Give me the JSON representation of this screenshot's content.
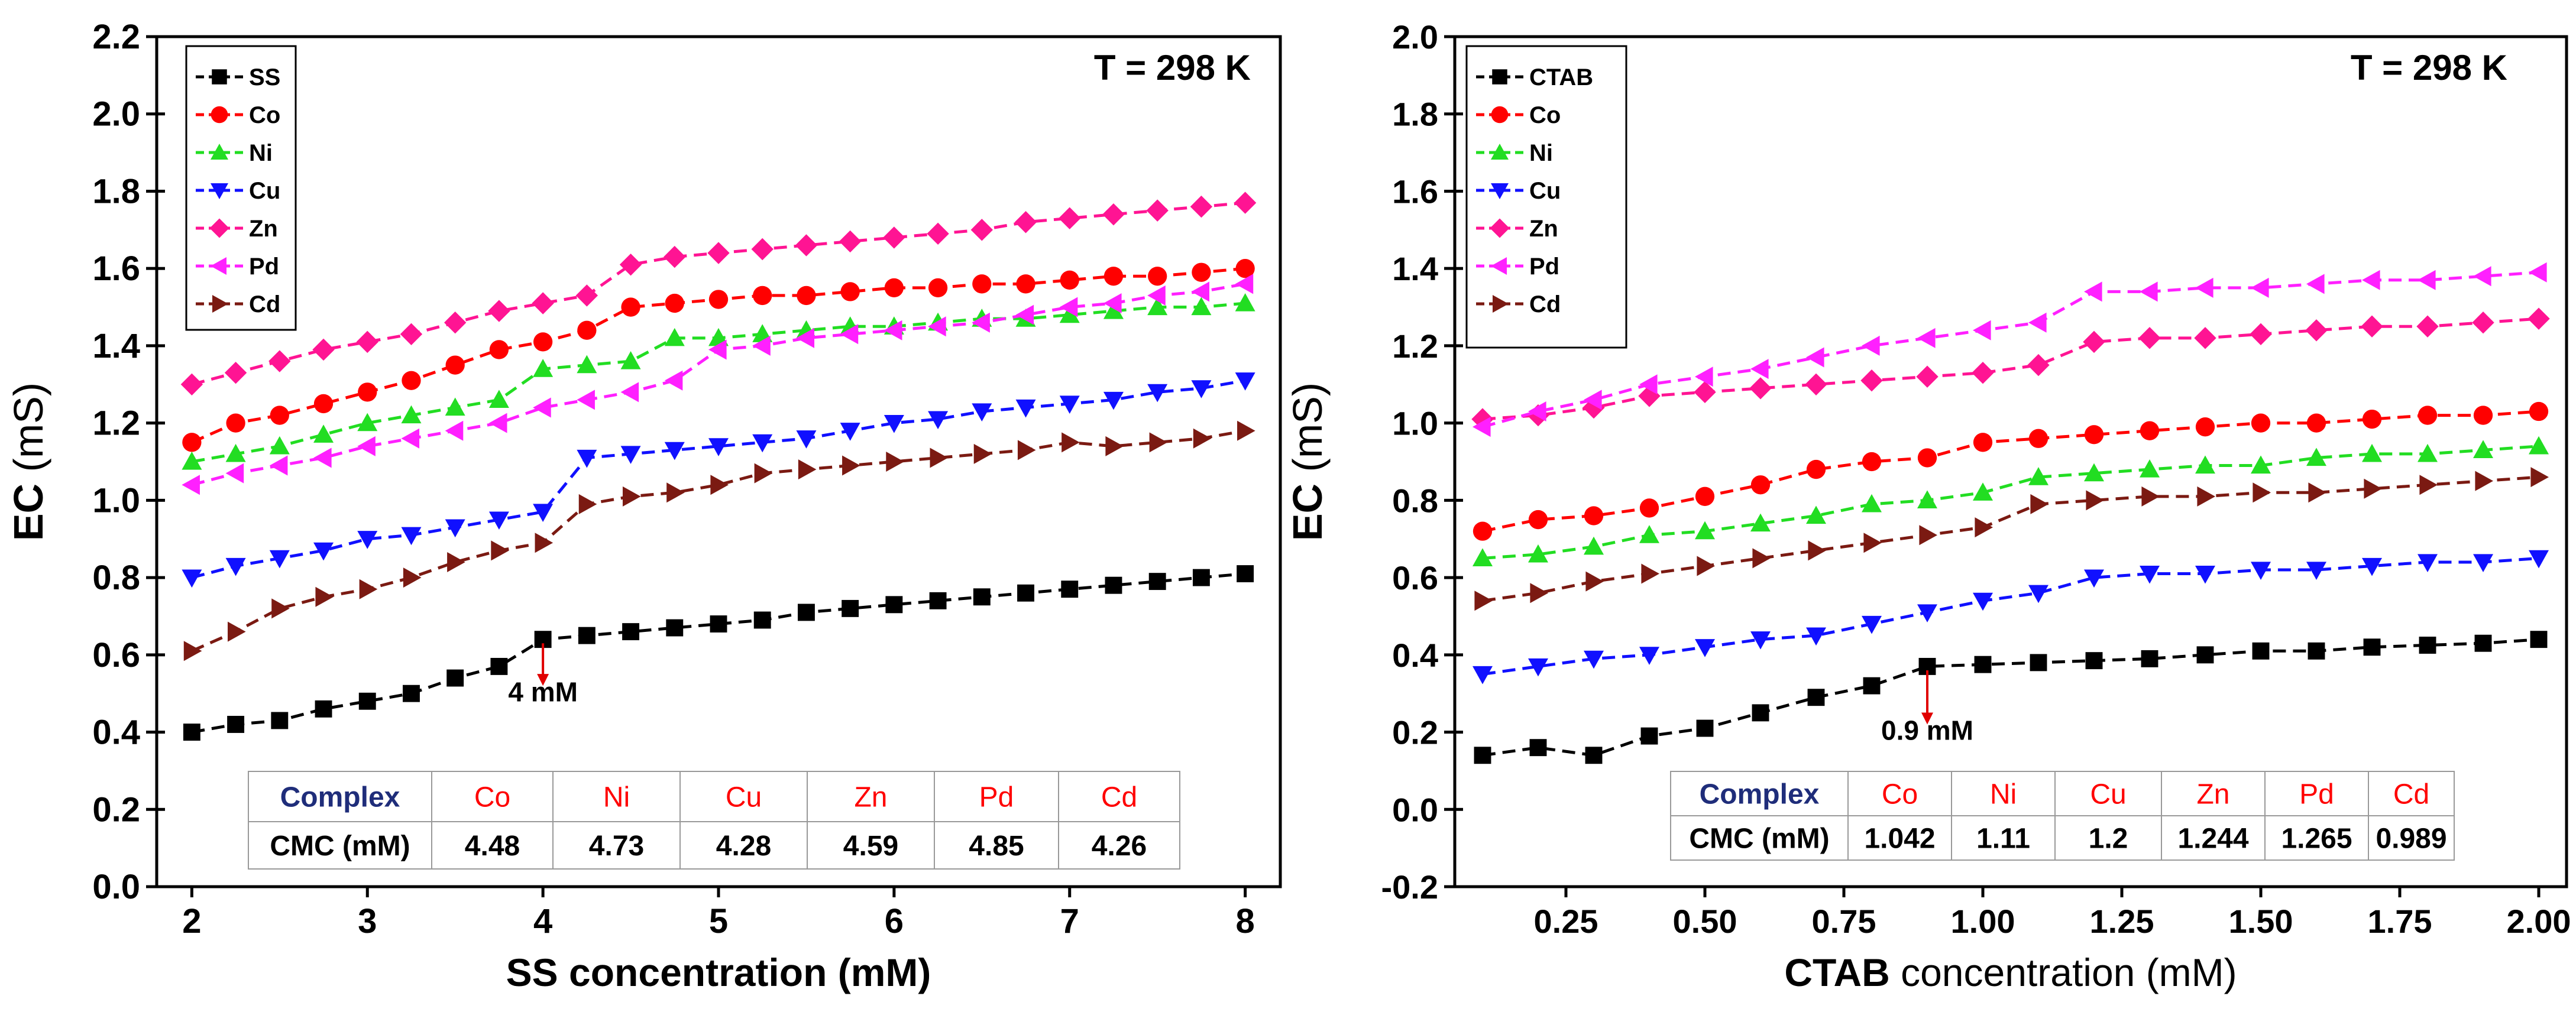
{
  "colors": {
    "black": "#000000",
    "red": "#ff0000",
    "green": "#22dd22",
    "blue": "#1010ff",
    "magenta": "#ff1493",
    "violet": "#ff20ff",
    "brown": "#7b1a12",
    "navy": "#1f2d7a",
    "marker_red": "#e00000"
  },
  "chart_data": [
    {
      "type": "line",
      "temperature_label": "T = 298 K",
      "xlabel": "SS concentration (mM)",
      "xlabel_parts": [
        "SS concentration (mM)",
        ""
      ],
      "ylabel_main": "EC",
      "ylabel_unit": " (mS)",
      "xlim": [
        1.8,
        8.2
      ],
      "ylim": [
        0,
        2.2
      ],
      "xticks": [
        2,
        3,
        4,
        5,
        6,
        7,
        8
      ],
      "xtick_labels": [
        "2",
        "3",
        "4",
        "5",
        "6",
        "7",
        "8"
      ],
      "yticks": [
        0.0,
        0.2,
        0.4,
        0.6,
        0.8,
        1.0,
        1.2,
        1.4,
        1.6,
        1.8,
        2.0,
        2.2
      ],
      "ytick_labels": [
        "0.0",
        "0.2",
        "0.4",
        "0.6",
        "0.8",
        "1.0",
        "1.2",
        "1.4",
        "1.6",
        "1.8",
        "2.0",
        "2.2"
      ],
      "x": [
        2.0,
        2.25,
        2.5,
        2.75,
        3.0,
        3.25,
        3.5,
        3.75,
        4.0,
        4.25,
        4.5,
        4.75,
        5.0,
        5.25,
        5.5,
        5.75,
        6.0,
        6.25,
        6.5,
        6.75,
        7.0,
        7.25,
        7.5,
        7.75,
        8.0
      ],
      "series": [
        {
          "name": "SS",
          "color": "black",
          "marker": "square",
          "values": [
            0.4,
            0.42,
            0.43,
            0.46,
            0.48,
            0.5,
            0.54,
            0.57,
            0.64,
            0.65,
            0.66,
            0.67,
            0.68,
            0.69,
            0.71,
            0.72,
            0.73,
            0.74,
            0.75,
            0.76,
            0.77,
            0.78,
            0.79,
            0.8,
            0.81
          ]
        },
        {
          "name": "Co",
          "color": "red",
          "marker": "circle",
          "values": [
            1.15,
            1.2,
            1.22,
            1.25,
            1.28,
            1.31,
            1.35,
            1.39,
            1.41,
            1.44,
            1.5,
            1.51,
            1.52,
            1.53,
            1.53,
            1.54,
            1.55,
            1.55,
            1.56,
            1.56,
            1.57,
            1.58,
            1.58,
            1.59,
            1.6
          ]
        },
        {
          "name": "Ni",
          "color": "green",
          "marker": "triangle-up",
          "values": [
            1.1,
            1.12,
            1.14,
            1.17,
            1.2,
            1.22,
            1.24,
            1.26,
            1.34,
            1.35,
            1.36,
            1.42,
            1.42,
            1.43,
            1.44,
            1.45,
            1.45,
            1.46,
            1.47,
            1.47,
            1.48,
            1.49,
            1.5,
            1.5,
            1.51
          ]
        },
        {
          "name": "Cu",
          "color": "blue",
          "marker": "triangle-down",
          "values": [
            0.8,
            0.83,
            0.85,
            0.87,
            0.9,
            0.91,
            0.93,
            0.95,
            0.97,
            1.11,
            1.12,
            1.13,
            1.14,
            1.15,
            1.16,
            1.18,
            1.2,
            1.21,
            1.23,
            1.24,
            1.25,
            1.26,
            1.28,
            1.29,
            1.31
          ]
        },
        {
          "name": "Zn",
          "color": "magenta",
          "marker": "diamond",
          "values": [
            1.3,
            1.33,
            1.36,
            1.39,
            1.41,
            1.43,
            1.46,
            1.49,
            1.51,
            1.53,
            1.61,
            1.63,
            1.64,
            1.65,
            1.66,
            1.67,
            1.68,
            1.69,
            1.7,
            1.72,
            1.73,
            1.74,
            1.75,
            1.76,
            1.77
          ]
        },
        {
          "name": "Pd",
          "color": "violet",
          "marker": "triangle-left",
          "values": [
            1.04,
            1.07,
            1.09,
            1.11,
            1.14,
            1.16,
            1.18,
            1.2,
            1.24,
            1.26,
            1.28,
            1.31,
            1.39,
            1.4,
            1.42,
            1.43,
            1.44,
            1.45,
            1.46,
            1.48,
            1.5,
            1.51,
            1.53,
            1.54,
            1.56
          ]
        },
        {
          "name": "Cd",
          "color": "brown",
          "marker": "triangle-right",
          "values": [
            0.61,
            0.66,
            0.72,
            0.75,
            0.77,
            0.8,
            0.84,
            0.87,
            0.89,
            0.99,
            1.01,
            1.02,
            1.04,
            1.07,
            1.08,
            1.09,
            1.1,
            1.11,
            1.12,
            1.13,
            1.15,
            1.14,
            1.15,
            1.16,
            1.18
          ]
        }
      ],
      "annotation": {
        "label": "4 mM",
        "x": 4.0,
        "y_from": 0.63,
        "y_to": 0.52,
        "label_y": 0.48
      },
      "cmc_table": {
        "header": [
          "Complex",
          "Co",
          "Ni",
          "Cu",
          "Zn",
          "Pd",
          "Cd"
        ],
        "values": [
          "CMC (mM)",
          "4.48",
          "4.73",
          "4.28",
          "4.59",
          "4.85",
          "4.26"
        ]
      }
    },
    {
      "type": "line",
      "temperature_label": "T = 298 K",
      "xlabel": "CTAB concentration (mM)",
      "xlabel_parts": [
        "CTAB",
        " concentration (mM)"
      ],
      "ylabel_main": "EC",
      "ylabel_unit": " (mS)",
      "xlim": [
        0.05,
        2.05
      ],
      "ylim": [
        -0.2,
        2.0
      ],
      "xticks": [
        0.25,
        0.5,
        0.75,
        1.0,
        1.25,
        1.5,
        1.75,
        2.0
      ],
      "xtick_labels": [
        "0.25",
        "0.50",
        "0.75",
        "1.00",
        "1.25",
        "1.50",
        "1.75",
        "2.00"
      ],
      "yticks": [
        -0.2,
        0.0,
        0.2,
        0.4,
        0.6,
        0.8,
        1.0,
        1.2,
        1.4,
        1.6,
        1.8,
        2.0
      ],
      "ytick_labels": [
        "-0.2",
        "0.0",
        "0.2",
        "0.4",
        "0.6",
        "0.8",
        "1.0",
        "1.2",
        "1.4",
        "1.6",
        "1.8",
        "2.0"
      ],
      "x": [
        0.1,
        0.2,
        0.3,
        0.4,
        0.5,
        0.6,
        0.7,
        0.8,
        0.9,
        1.0,
        1.1,
        1.2,
        1.3,
        1.4,
        1.5,
        1.6,
        1.7,
        1.8,
        1.9,
        2.0
      ],
      "series": [
        {
          "name": "CTAB",
          "color": "black",
          "marker": "square",
          "values": [
            0.14,
            0.16,
            0.14,
            0.19,
            0.21,
            0.25,
            0.29,
            0.32,
            0.37,
            0.375,
            0.38,
            0.385,
            0.39,
            0.4,
            0.41,
            0.41,
            0.42,
            0.425,
            0.43,
            0.44
          ]
        },
        {
          "name": "Co",
          "color": "red",
          "marker": "circle",
          "values": [
            0.72,
            0.75,
            0.76,
            0.78,
            0.81,
            0.84,
            0.88,
            0.9,
            0.91,
            0.95,
            0.96,
            0.97,
            0.98,
            0.99,
            1.0,
            1.0,
            1.01,
            1.02,
            1.02,
            1.03
          ]
        },
        {
          "name": "Ni",
          "color": "green",
          "marker": "triangle-up",
          "values": [
            0.65,
            0.66,
            0.68,
            0.71,
            0.72,
            0.74,
            0.76,
            0.79,
            0.8,
            0.82,
            0.86,
            0.87,
            0.88,
            0.89,
            0.89,
            0.91,
            0.92,
            0.92,
            0.93,
            0.94
          ]
        },
        {
          "name": "Cu",
          "color": "blue",
          "marker": "triangle-down",
          "values": [
            0.35,
            0.37,
            0.39,
            0.4,
            0.42,
            0.44,
            0.45,
            0.48,
            0.51,
            0.54,
            0.56,
            0.6,
            0.61,
            0.61,
            0.62,
            0.62,
            0.63,
            0.64,
            0.64,
            0.65
          ]
        },
        {
          "name": "Zn",
          "color": "magenta",
          "marker": "diamond",
          "values": [
            1.01,
            1.02,
            1.04,
            1.07,
            1.08,
            1.09,
            1.1,
            1.11,
            1.12,
            1.13,
            1.15,
            1.21,
            1.22,
            1.22,
            1.23,
            1.24,
            1.25,
            1.25,
            1.26,
            1.27
          ]
        },
        {
          "name": "Pd",
          "color": "violet",
          "marker": "triangle-left",
          "values": [
            0.99,
            1.03,
            1.06,
            1.1,
            1.12,
            1.14,
            1.17,
            1.2,
            1.22,
            1.24,
            1.26,
            1.34,
            1.34,
            1.35,
            1.35,
            1.36,
            1.37,
            1.37,
            1.38,
            1.39
          ]
        },
        {
          "name": "Cd",
          "color": "brown",
          "marker": "triangle-right",
          "values": [
            0.54,
            0.56,
            0.59,
            0.61,
            0.63,
            0.65,
            0.67,
            0.69,
            0.71,
            0.73,
            0.79,
            0.8,
            0.81,
            0.81,
            0.82,
            0.82,
            0.83,
            0.84,
            0.85,
            0.86
          ]
        }
      ],
      "annotation": {
        "label": "0.9 mM",
        "x": 0.9,
        "y_from": 0.36,
        "y_to": 0.22,
        "label_y": 0.18
      },
      "cmc_table": {
        "header": [
          "Complex",
          "Co",
          "Ni",
          "Cu",
          "Zn",
          "Pd",
          "Cd"
        ],
        "values": [
          "CMC (mM)",
          "1.042",
          "1.11",
          "1.2",
          "1.244",
          "1.265",
          "0.989"
        ]
      }
    }
  ]
}
